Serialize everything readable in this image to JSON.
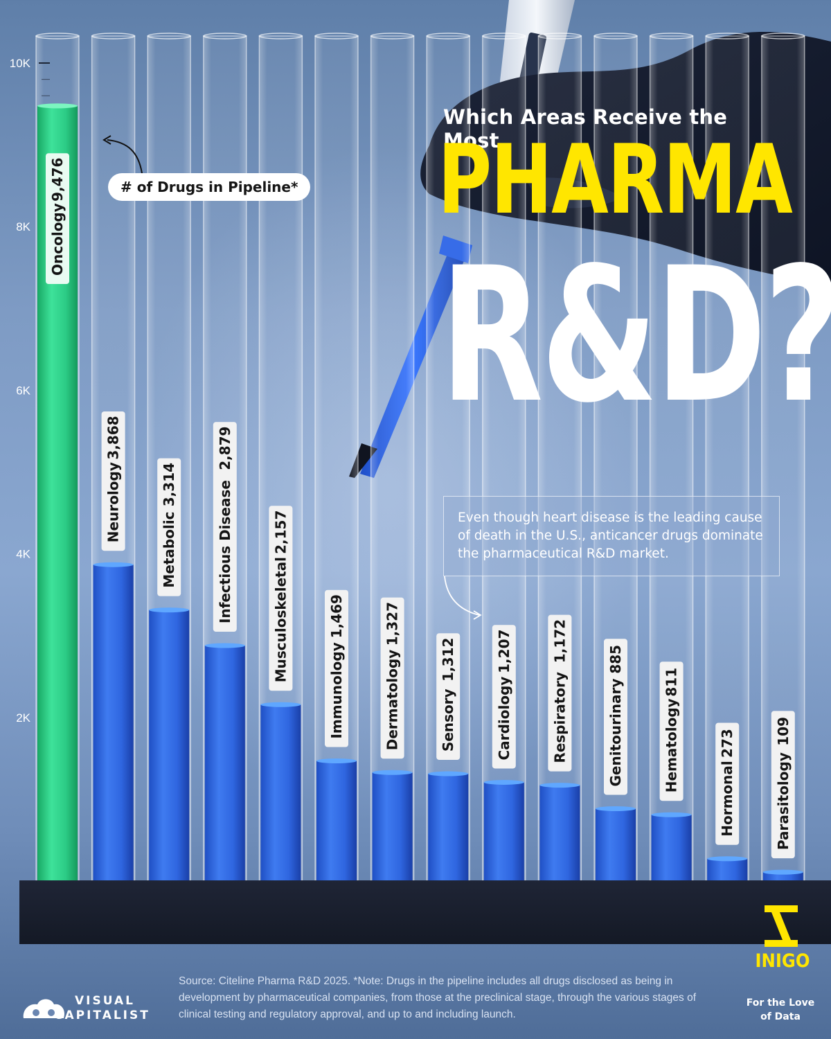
{
  "title": {
    "line1": "Which Areas Receive the Most",
    "line2": "PHARMA",
    "line3": "R&D?"
  },
  "badge": "# of Drugs in Pipeline*",
  "note": "Even though heart disease is the leading cause of death in the U.S., anticancer drugs dominate the pharmaceutical R&D market.",
  "source": "Source: Citeline Pharma R&D 2025. *Note: Drugs in the pipeline includes all drugs disclosed as being in development by pharmaceutical companies, from those at the preclinical stage, through the various stages of clinical testing and regulatory approval, and up to and including launch.",
  "brand": {
    "vc_line1": "VISUAL",
    "vc_line2": "CAPITALIST",
    "inigo": "INIGO",
    "inigo_tag": "For the Love of Data"
  },
  "colors": {
    "highlight": "#2ecf8a",
    "bar": "#2f6fe8",
    "accent": "#ffe600"
  },
  "chart_data": {
    "type": "bar",
    "title": "Which Areas Receive the Most PHARMA R&D?",
    "ylabel": "# of Drugs in Pipeline*",
    "ylim": [
      0,
      10000
    ],
    "y_ticks": [
      2000,
      4000,
      6000,
      8000,
      10000
    ],
    "y_tick_labels": [
      "2K",
      "4K",
      "6K",
      "8K",
      "10K"
    ],
    "grid": false,
    "categories": [
      "Oncology",
      "Neurology",
      "Metabolic",
      "Infectious Disease",
      "Musculoskeletal",
      "Immunology",
      "Dermatology",
      "Sensory",
      "Cardiology",
      "Respiratory",
      "Genitourinary",
      "Hematology",
      "Hormonal",
      "Parasitology"
    ],
    "values": [
      9476,
      3868,
      3314,
      2879,
      2157,
      1469,
      1327,
      1312,
      1207,
      1172,
      885,
      811,
      273,
      109
    ],
    "value_labels": [
      "9,476",
      "3,868",
      "3,314",
      "2,879",
      "2,157",
      "1,469",
      "1,327",
      "1,312",
      "1,207",
      "1,172",
      "885",
      "811",
      "273",
      "109"
    ],
    "highlighted": "Oncology"
  }
}
